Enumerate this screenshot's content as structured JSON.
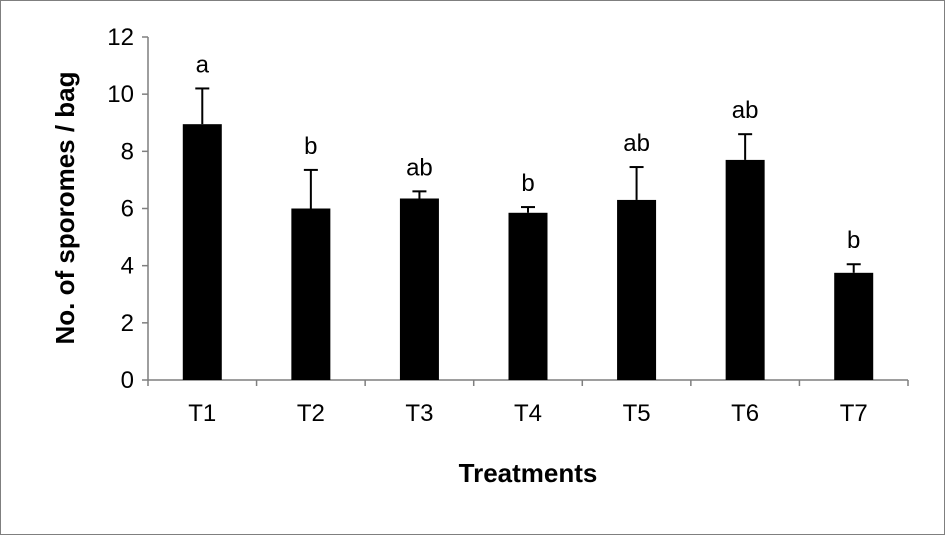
{
  "chart_data": {
    "type": "bar",
    "title": "",
    "xlabel": "Treatments",
    "ylabel": "No. of  sporomes / bag",
    "ylim": [
      0,
      12
    ],
    "yticks": [
      0,
      2,
      4,
      6,
      8,
      10,
      12
    ],
    "grid": false,
    "legend": "none",
    "categories": [
      "T1",
      "T2",
      "T3",
      "T4",
      "T5",
      "T6",
      "T7"
    ],
    "series": [
      {
        "values": [
          8.95,
          6.0,
          6.35,
          5.85,
          6.3,
          7.7,
          3.75
        ],
        "error_upper": [
          1.25,
          1.35,
          0.25,
          0.2,
          1.15,
          0.9,
          0.3
        ],
        "significance": [
          "a",
          "b",
          "ab",
          "b",
          "ab",
          "ab",
          "b"
        ]
      }
    ],
    "colors": {
      "bar": "#000000",
      "axis": "#7f7f7f",
      "frame": "#7f7f7f"
    }
  }
}
